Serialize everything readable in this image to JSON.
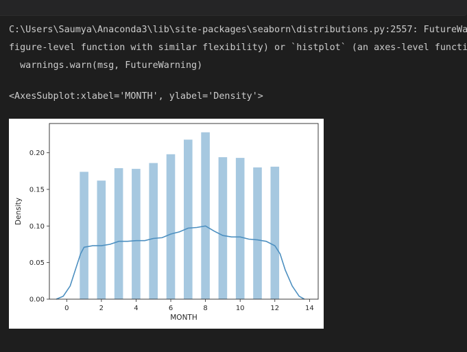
{
  "output": {
    "warning_line_1": "C:\\Users\\Saumya\\Anaconda3\\lib\\site-packages\\seaborn\\distributions.py:2557: FutureWarning: `distplot` is a deprecated function and will be removed in a future version. Please adapt your code to use either `displot` (a",
    "warning_line_2": "figure-level function with similar flexibility) or `histplot` (an axes-level function for histograms).",
    "warning_line_3": "  warnings.warn(msg, FutureWarning)",
    "result_repr": "<AxesSubplot:xlabel='MONTH', ylabel='Density'>"
  },
  "colors": {
    "bar": "#a6c8e0",
    "kde": "#4c8fc0",
    "axis": "#262626",
    "background": "#1e1e1e",
    "text": "#cccccc"
  },
  "chart_data": {
    "type": "bar",
    "xlabel": "MONTH",
    "ylabel": "Density",
    "xlim": [
      -1,
      14.5
    ],
    "ylim": [
      0,
      0.24
    ],
    "xticks": [
      0,
      2,
      4,
      6,
      8,
      10,
      12,
      14
    ],
    "yticks": [
      0.0,
      0.05,
      0.1,
      0.15,
      0.2
    ],
    "ytick_labels": [
      "0.00",
      "0.05",
      "0.10",
      "0.15",
      "0.20"
    ],
    "bar_width": 0.5,
    "bars": {
      "x": [
        1,
        2,
        3,
        4,
        5,
        6,
        7,
        8,
        9,
        10,
        11,
        12
      ],
      "values": [
        0.174,
        0.162,
        0.179,
        0.178,
        0.186,
        0.198,
        0.218,
        0.228,
        0.194,
        0.193,
        0.18,
        0.181
      ]
    },
    "kde": {
      "x": [
        -0.6,
        -0.2,
        0.2,
        0.5,
        0.8,
        1.0,
        1.5,
        2.0,
        2.5,
        3.0,
        3.5,
        4.0,
        4.5,
        5.0,
        5.5,
        6.0,
        6.5,
        7.0,
        7.5,
        8.0,
        8.5,
        9.0,
        9.5,
        10.0,
        10.5,
        11.0,
        11.5,
        12.0,
        12.3,
        12.6,
        13.0,
        13.4,
        13.7
      ],
      "y": [
        0.0,
        0.004,
        0.018,
        0.04,
        0.062,
        0.071,
        0.073,
        0.073,
        0.075,
        0.079,
        0.079,
        0.08,
        0.08,
        0.083,
        0.084,
        0.089,
        0.092,
        0.097,
        0.098,
        0.1,
        0.093,
        0.087,
        0.085,
        0.085,
        0.082,
        0.081,
        0.079,
        0.073,
        0.062,
        0.04,
        0.018,
        0.004,
        0.0
      ]
    }
  }
}
